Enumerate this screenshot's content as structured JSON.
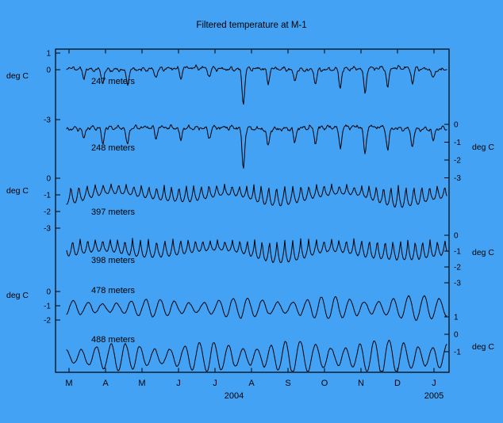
{
  "colors": {
    "background": "#44a2f5",
    "trace": "#000000",
    "text": "#000000",
    "axis": "#000000"
  },
  "x_axis": {
    "month_tick_labels": [
      "M",
      "A",
      "M",
      "J",
      "J",
      "A",
      "S",
      "O",
      "N",
      "D",
      "J"
    ],
    "year_labels": [
      "2004",
      "2005"
    ]
  },
  "chart_data": {
    "type": "line",
    "title": "Filtered temperature at M-1",
    "x_domain": "March 2004 - January 2005",
    "x_tick_labels": [
      "M",
      "A",
      "M",
      "J",
      "J",
      "A",
      "S",
      "O",
      "N",
      "D",
      "J"
    ],
    "ylabel": "deg C",
    "grid": false,
    "series": [
      {
        "name": "247 m",
        "depth_label": "247 meters",
        "units_label": "deg C",
        "axis_side": "left",
        "ytick_labels": [
          "1",
          "0",
          "-3"
        ],
        "ytick_values": [
          1,
          0,
          -3
        ],
        "ylim": [
          -3,
          1
        ],
        "kind": "spiky",
        "baseline": 0.05,
        "noise_amp": 0.13,
        "spike_width": 0.0048,
        "spikes": [
          [
            0.045,
            0.5
          ],
          [
            0.095,
            0.8
          ],
          [
            0.16,
            0.9
          ],
          [
            0.235,
            0.5
          ],
          [
            0.3,
            0.6
          ],
          [
            0.375,
            0.5
          ],
          [
            0.465,
            2.1
          ],
          [
            0.53,
            0.9
          ],
          [
            0.6,
            0.7
          ],
          [
            0.655,
            0.8
          ],
          [
            0.72,
            1.1
          ],
          [
            0.785,
            1.5
          ],
          [
            0.845,
            1.2
          ],
          [
            0.91,
            0.9
          ],
          [
            0.965,
            0.6
          ]
        ],
        "monthly_mean_degC": [
          0.1,
          0.1,
          0.1,
          0.05,
          0.0,
          -0.05,
          0.0,
          0.05,
          0.0,
          0.0,
          0.1
        ]
      },
      {
        "name": "248 m",
        "depth_label": "248 meters",
        "units_label": "deg C",
        "axis_side": "right",
        "ytick_labels": [
          "0",
          "-1",
          "-2",
          "-3"
        ],
        "ytick_values": [
          0,
          -1,
          -2,
          -3
        ],
        "ylim": [
          -3,
          0.5
        ],
        "kind": "spiky",
        "baseline": -0.2,
        "noise_amp": 0.13,
        "spike_width": 0.0048,
        "spikes": [
          [
            0.045,
            0.6
          ],
          [
            0.095,
            0.9
          ],
          [
            0.16,
            1.0
          ],
          [
            0.235,
            0.6
          ],
          [
            0.3,
            0.7
          ],
          [
            0.375,
            0.6
          ],
          [
            0.465,
            2.3
          ],
          [
            0.53,
            1.0
          ],
          [
            0.6,
            0.8
          ],
          [
            0.655,
            0.9
          ],
          [
            0.72,
            1.2
          ],
          [
            0.785,
            1.6
          ],
          [
            0.845,
            1.3
          ],
          [
            0.91,
            1.0
          ],
          [
            0.965,
            0.7
          ]
        ],
        "monthly_mean_degC": [
          -0.1,
          -0.15,
          -0.2,
          -0.2,
          -0.25,
          -0.4,
          -0.3,
          -0.2,
          -0.3,
          -0.25,
          -0.2
        ]
      },
      {
        "name": "397 m",
        "depth_label": "397 meters",
        "units_label": "deg C",
        "axis_side": "left",
        "ytick_labels": [
          "0",
          "-1",
          "-2",
          "-3"
        ],
        "ytick_values": [
          0,
          -1,
          -2,
          -3
        ],
        "ylim": [
          -3,
          0.5
        ],
        "kind": "scallop",
        "top": -0.35,
        "amp": 1.15,
        "cycles": 50,
        "grow": 0.2,
        "monthly_mean_degC": [
          -0.8,
          -0.9,
          -0.8,
          -0.9,
          -1.0,
          -1.0,
          -0.9,
          -1.0,
          -0.9,
          -0.9,
          -0.8
        ]
      },
      {
        "name": "398 m",
        "depth_label": "398 meters",
        "units_label": "deg C",
        "axis_side": "right",
        "ytick_labels": [
          "0",
          "-1",
          "-2",
          "-3"
        ],
        "ytick_values": [
          0,
          -1,
          -2,
          -3
        ],
        "ylim": [
          -3,
          0.5
        ],
        "kind": "scallop",
        "top": -0.2,
        "amp": 1.35,
        "cycles": 50,
        "grow": 0.3,
        "monthly_mean_degC": [
          -0.8,
          -0.9,
          -1.0,
          -1.0,
          -1.1,
          -1.0,
          -1.0,
          -1.1,
          -1.0,
          -1.0,
          -0.9
        ]
      },
      {
        "name": "478 m",
        "depth_label": "478 meters",
        "units_label": "deg C",
        "axis_side": "left",
        "ytick_labels": [
          "0",
          "-1",
          "-2"
        ],
        "ytick_values": [
          0,
          -1,
          -2
        ],
        "ylim": [
          -2.2,
          0.2
        ],
        "kind": "smooth",
        "center": -1.15,
        "amp": 0.72,
        "cycles": 26,
        "grow": 0.5,
        "monthly_mean_degC": [
          -1.1,
          -1.2,
          -1.1,
          -1.2,
          -1.1,
          -1.2,
          -1.1,
          -1.1,
          -1.2,
          -1.1,
          -1.1
        ]
      },
      {
        "name": "488 m",
        "depth_label": "488 meters",
        "units_label": "deg C",
        "axis_side": "right",
        "ytick_labels": [
          "1",
          "0",
          "-1"
        ],
        "ytick_values": [
          1,
          0,
          -1
        ],
        "ylim": [
          -2.2,
          1
        ],
        "kind": "smooth",
        "center": -1.3,
        "amp": 0.9,
        "cycles": 26,
        "grow": 0.35,
        "monthly_mean_degC": [
          -1.3,
          -1.3,
          -1.2,
          -1.3,
          -1.3,
          -1.4,
          -1.3,
          -1.3,
          -1.3,
          -1.3,
          -1.2
        ]
      }
    ]
  }
}
